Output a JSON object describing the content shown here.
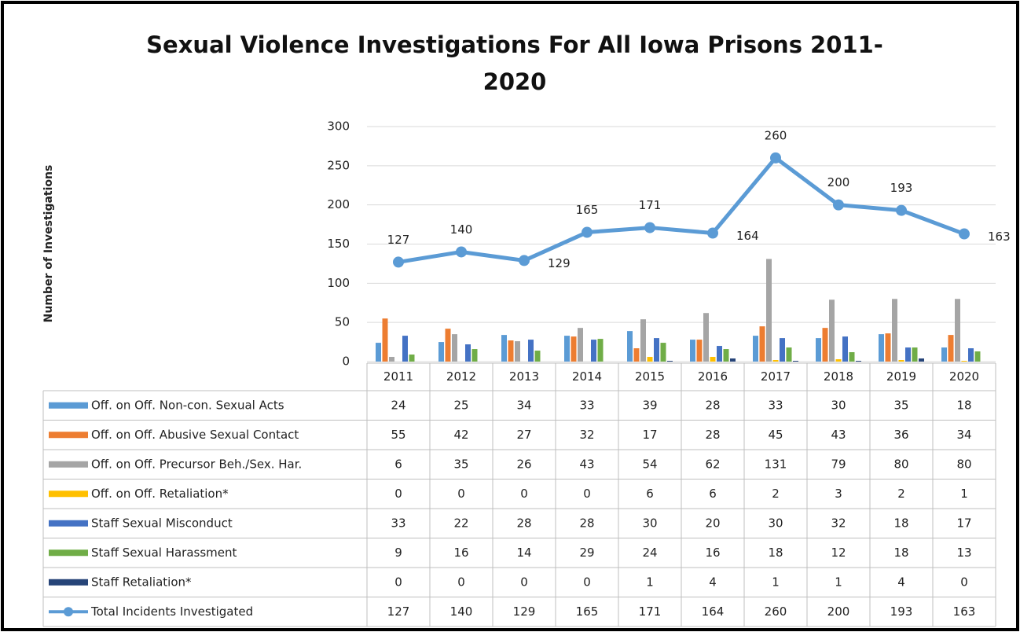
{
  "chart_data": {
    "type": "bar",
    "title": "Sexual Violence Investigations For All Iowa Prisons 2011-2020",
    "y_label": "Number of Investigations",
    "categories": [
      "2011",
      "2012",
      "2013",
      "2014",
      "2015",
      "2016",
      "2017",
      "2018",
      "2019",
      "2020"
    ],
    "ylim": [
      0,
      300
    ],
    "yticks": [
      0,
      50,
      100,
      150,
      200,
      250,
      300
    ],
    "grid": true,
    "series": [
      {
        "name": "Off. on Off. Non-con. Sexual Acts",
        "color": "#5b9bd5",
        "values": [
          24,
          25,
          34,
          33,
          39,
          28,
          33,
          30,
          35,
          18
        ]
      },
      {
        "name": "Off. on Off. Abusive Sexual Contact",
        "color": "#ed7d31",
        "values": [
          55,
          42,
          27,
          32,
          17,
          28,
          45,
          43,
          36,
          34
        ]
      },
      {
        "name": "Off. on Off. Precursor Beh./Sex. Har.",
        "color": "#a5a5a5",
        "values": [
          6,
          35,
          26,
          43,
          54,
          62,
          131,
          79,
          80,
          80
        ]
      },
      {
        "name": "Off. on Off. Retaliation*",
        "color": "#ffc000",
        "values": [
          0,
          0,
          0,
          0,
          6,
          6,
          2,
          3,
          2,
          1
        ]
      },
      {
        "name": "Staff Sexual Misconduct",
        "color": "#4472c4",
        "values": [
          33,
          22,
          28,
          28,
          30,
          20,
          30,
          32,
          18,
          17
        ]
      },
      {
        "name": "Staff Sexual Harassment",
        "color": "#70ad47",
        "values": [
          9,
          16,
          14,
          29,
          24,
          16,
          18,
          12,
          18,
          13
        ]
      },
      {
        "name": "Staff Retaliation*",
        "color": "#264478",
        "values": [
          0,
          0,
          0,
          0,
          1,
          4,
          1,
          1,
          4,
          0
        ]
      },
      {
        "name": "Total Incidents Investigated",
        "color": "#5b9bd5",
        "type": "line",
        "values": [
          127,
          140,
          129,
          165,
          171,
          164,
          260,
          200,
          193,
          163
        ]
      }
    ]
  }
}
